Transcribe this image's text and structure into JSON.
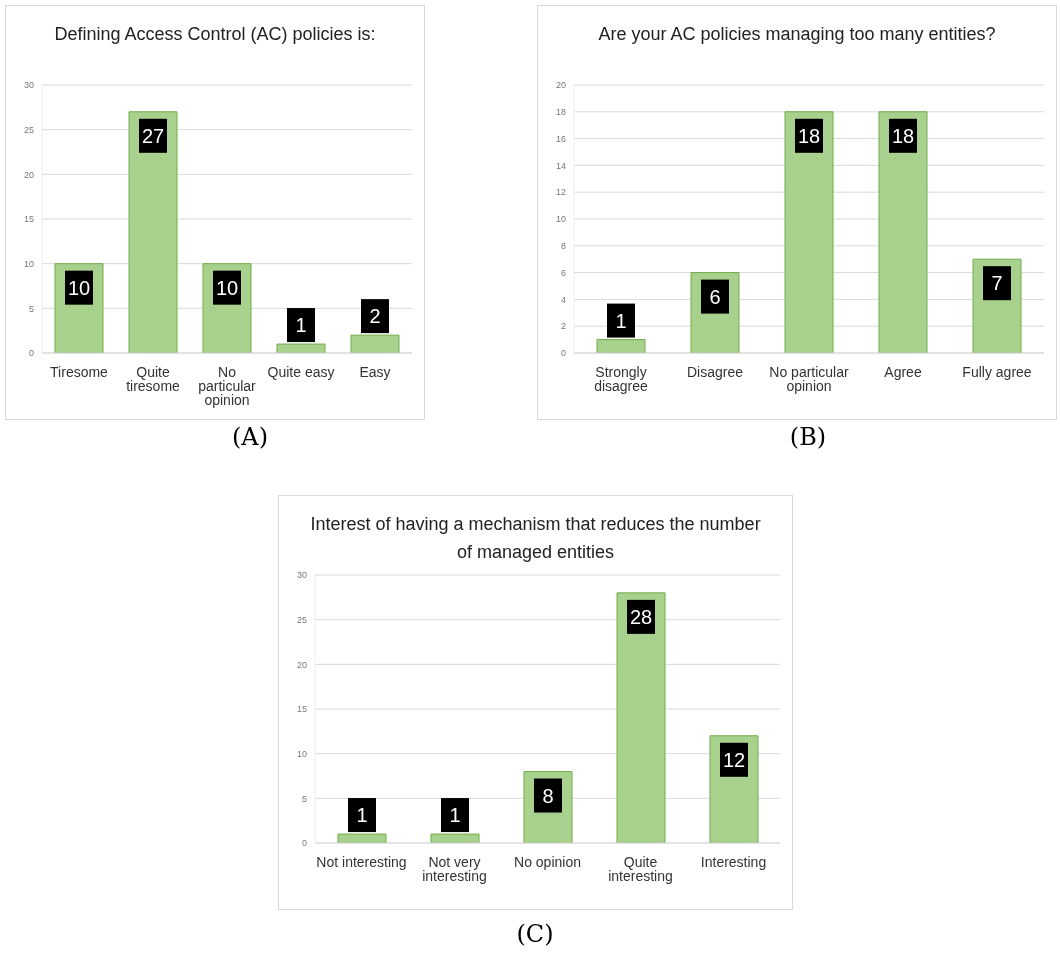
{
  "chart_data": [
    {
      "type": "bar",
      "title": "Defining Access Control (AC) policies is:",
      "categories": [
        "Tiresome",
        "Quite tiresome",
        "No particular opinion",
        "Quite easy",
        "Easy"
      ],
      "values": [
        10,
        27,
        10,
        1,
        2
      ],
      "color": "#a9d18e",
      "ylim": [
        0,
        30
      ],
      "yticks": [
        0,
        5,
        10,
        15,
        20,
        25,
        30
      ],
      "grid": "y",
      "data_labels": true,
      "annotations": [
        "(A)"
      ]
    },
    {
      "type": "bar",
      "title": "Are your AC policies managing too many entities?",
      "categories": [
        "Strongly disagree",
        "Disagree",
        "No particular opinion",
        "Agree",
        "Fully agree"
      ],
      "values": [
        1,
        6,
        18,
        18,
        7
      ],
      "color": "#a9d18e",
      "ylim": [
        0,
        20
      ],
      "yticks": [
        0,
        2,
        4,
        6,
        8,
        10,
        12,
        14,
        16,
        18,
        20
      ],
      "grid": "y",
      "data_labels": true,
      "annotations": [
        "(B)"
      ]
    },
    {
      "type": "bar",
      "title": "Interest of having a mechanism that reduces the number of managed entities",
      "categories": [
        "Not interesting",
        "Not very interesting",
        "No opinion",
        "Quite interesting",
        "Interesting"
      ],
      "values": [
        1,
        1,
        8,
        28,
        12
      ],
      "color": "#a9d18e",
      "ylim": [
        0,
        30
      ],
      "yticks": [
        0,
        5,
        10,
        15,
        20,
        25,
        30
      ],
      "grid": "y",
      "data_labels": true,
      "annotations": [
        "(C)"
      ]
    }
  ]
}
